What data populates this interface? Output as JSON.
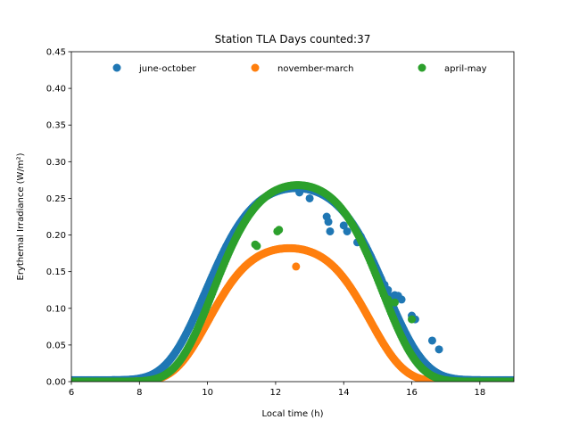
{
  "chart_data": {
    "type": "scatter",
    "title": "Station TLA Days counted:37",
    "xlabel": "Local time (h)",
    "ylabel": "Erythemal Irradiance (W/m²)",
    "xlim": [
      6,
      19
    ],
    "ylim": [
      0,
      0.45
    ],
    "xticks": [
      6,
      8,
      10,
      12,
      14,
      16,
      18
    ],
    "yticks": [
      0.0,
      0.05,
      0.1,
      0.15,
      0.2,
      0.25,
      0.3,
      0.35,
      0.4,
      0.45
    ],
    "grid": false,
    "legend_position": "top",
    "series": [
      {
        "name": "june-october",
        "color": "#1f77b4",
        "shape": {
          "start": 6.0,
          "end": 19.0,
          "peak_time": 12.6,
          "peak": 0.262,
          "width": 2.3,
          "baseline": 0.002
        },
        "outliers": [
          {
            "x": 13.5,
            "y": 0.225
          },
          {
            "x": 13.55,
            "y": 0.218
          },
          {
            "x": 13.6,
            "y": 0.205
          },
          {
            "x": 14.4,
            "y": 0.19
          },
          {
            "x": 14.5,
            "y": 0.198
          },
          {
            "x": 14.0,
            "y": 0.213
          },
          {
            "x": 14.1,
            "y": 0.205
          },
          {
            "x": 15.1,
            "y": 0.14
          },
          {
            "x": 15.2,
            "y": 0.132
          },
          {
            "x": 15.3,
            "y": 0.125
          },
          {
            "x": 15.5,
            "y": 0.118
          },
          {
            "x": 15.6,
            "y": 0.117
          },
          {
            "x": 15.7,
            "y": 0.112
          },
          {
            "x": 16.0,
            "y": 0.09
          },
          {
            "x": 16.1,
            "y": 0.085
          },
          {
            "x": 16.6,
            "y": 0.056
          },
          {
            "x": 16.8,
            "y": 0.044
          },
          {
            "x": 13.0,
            "y": 0.25
          },
          {
            "x": 12.7,
            "y": 0.258
          }
        ]
      },
      {
        "name": "november-march",
        "color": "#ff7f0e",
        "shape": {
          "start": 6.0,
          "end": 19.0,
          "peak_time": 12.4,
          "peak": 0.182,
          "width": 2.05,
          "baseline": 0.0
        },
        "outliers": [
          {
            "x": 12.6,
            "y": 0.157
          }
        ]
      },
      {
        "name": "april-may",
        "color": "#2ca02c",
        "shape": {
          "start": 6.0,
          "end": 19.0,
          "peak_time": 12.65,
          "peak": 0.268,
          "width": 2.15,
          "baseline": 0.0
        },
        "outliers": [
          {
            "x": 11.4,
            "y": 0.187
          },
          {
            "x": 11.45,
            "y": 0.185
          },
          {
            "x": 12.05,
            "y": 0.205
          },
          {
            "x": 12.1,
            "y": 0.207
          },
          {
            "x": 15.3,
            "y": 0.112
          },
          {
            "x": 15.5,
            "y": 0.108
          },
          {
            "x": 16.0,
            "y": 0.085
          }
        ]
      }
    ]
  }
}
